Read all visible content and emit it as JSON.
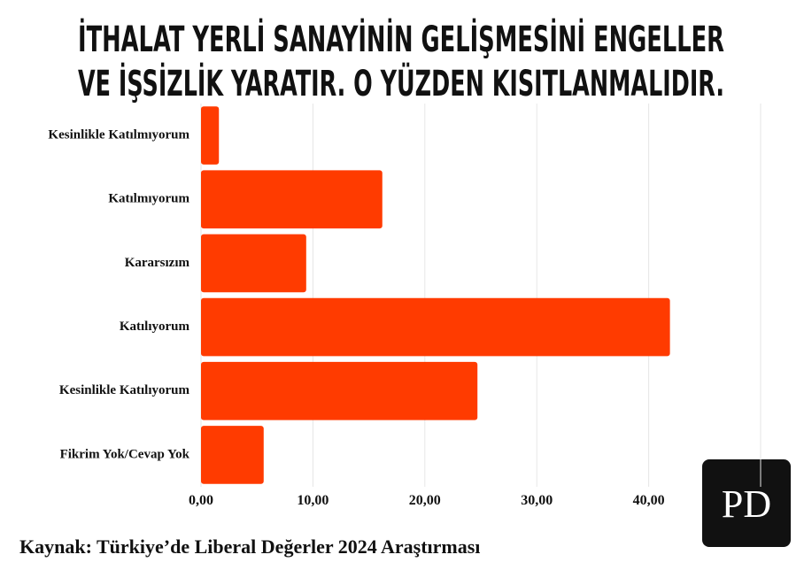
{
  "chart_data": {
    "type": "hbar",
    "title": [
      "İTHALAT YERLİ SANAYİNİN GELİŞMESİNİ ENGELLER",
      "VE İŞSİZLİK YARATIR. O YÜZDEN KISITLANMALIDIR."
    ],
    "categories": [
      "Kesinlikle Katılmıyorum",
      "Katılmıyorum",
      "Kararsızım",
      "Katılıyorum",
      "Kesinlikle Katılıyorum",
      "Fikrim Yok/Cevap Yok"
    ],
    "values": [
      1.6,
      16.2,
      9.4,
      41.9,
      24.7,
      5.6
    ],
    "color": "#ff3b00",
    "xlim": [
      0,
      50
    ],
    "xticks": [
      {
        "value": 0,
        "label": "0,00"
      },
      {
        "value": 10,
        "label": "10,00"
      },
      {
        "value": 20,
        "label": "20,00"
      },
      {
        "value": 30,
        "label": "30,00"
      },
      {
        "value": 40,
        "label": "40,00"
      }
    ],
    "grid": true,
    "source": "Kaynak: Türkiye’de Liberal Değerler 2024 Araştırması",
    "logo": "PD"
  }
}
